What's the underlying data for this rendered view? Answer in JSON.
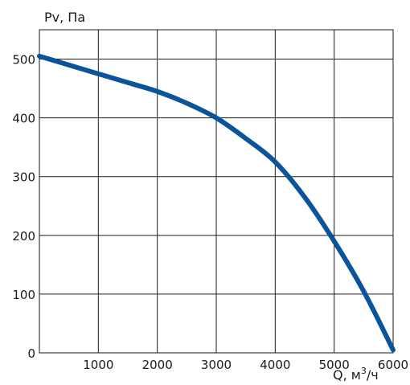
{
  "chart_data": {
    "type": "line",
    "ylabel": "Pv, Па",
    "xlabel_main": "Q, м",
    "xlabel_sup": "3",
    "xlabel_tail": "/ч",
    "xlim": [
      0,
      6000
    ],
    "ylim": [
      0,
      500
    ],
    "x_ticks": [
      1000,
      2000,
      3000,
      4000,
      5000,
      6000
    ],
    "x_tick_labels": [
      "1000",
      "2000",
      "3000",
      "4000",
      "5000",
      "6000"
    ],
    "y_ticks": [
      0,
      100,
      200,
      300,
      400,
      500
    ],
    "y_tick_labels": [
      "0",
      "100",
      "200",
      "300",
      "400",
      "500"
    ],
    "grid": true,
    "series": [
      {
        "color": "#0a5599",
        "x": [
          0,
          500,
          1000,
          1500,
          2000,
          2500,
          3000,
          3500,
          4000,
          4500,
          5000,
          5500,
          6000
        ],
        "y": [
          505,
          490,
          475,
          460,
          445,
          425,
          400,
          365,
          325,
          265,
          190,
          105,
          5
        ]
      }
    ]
  }
}
